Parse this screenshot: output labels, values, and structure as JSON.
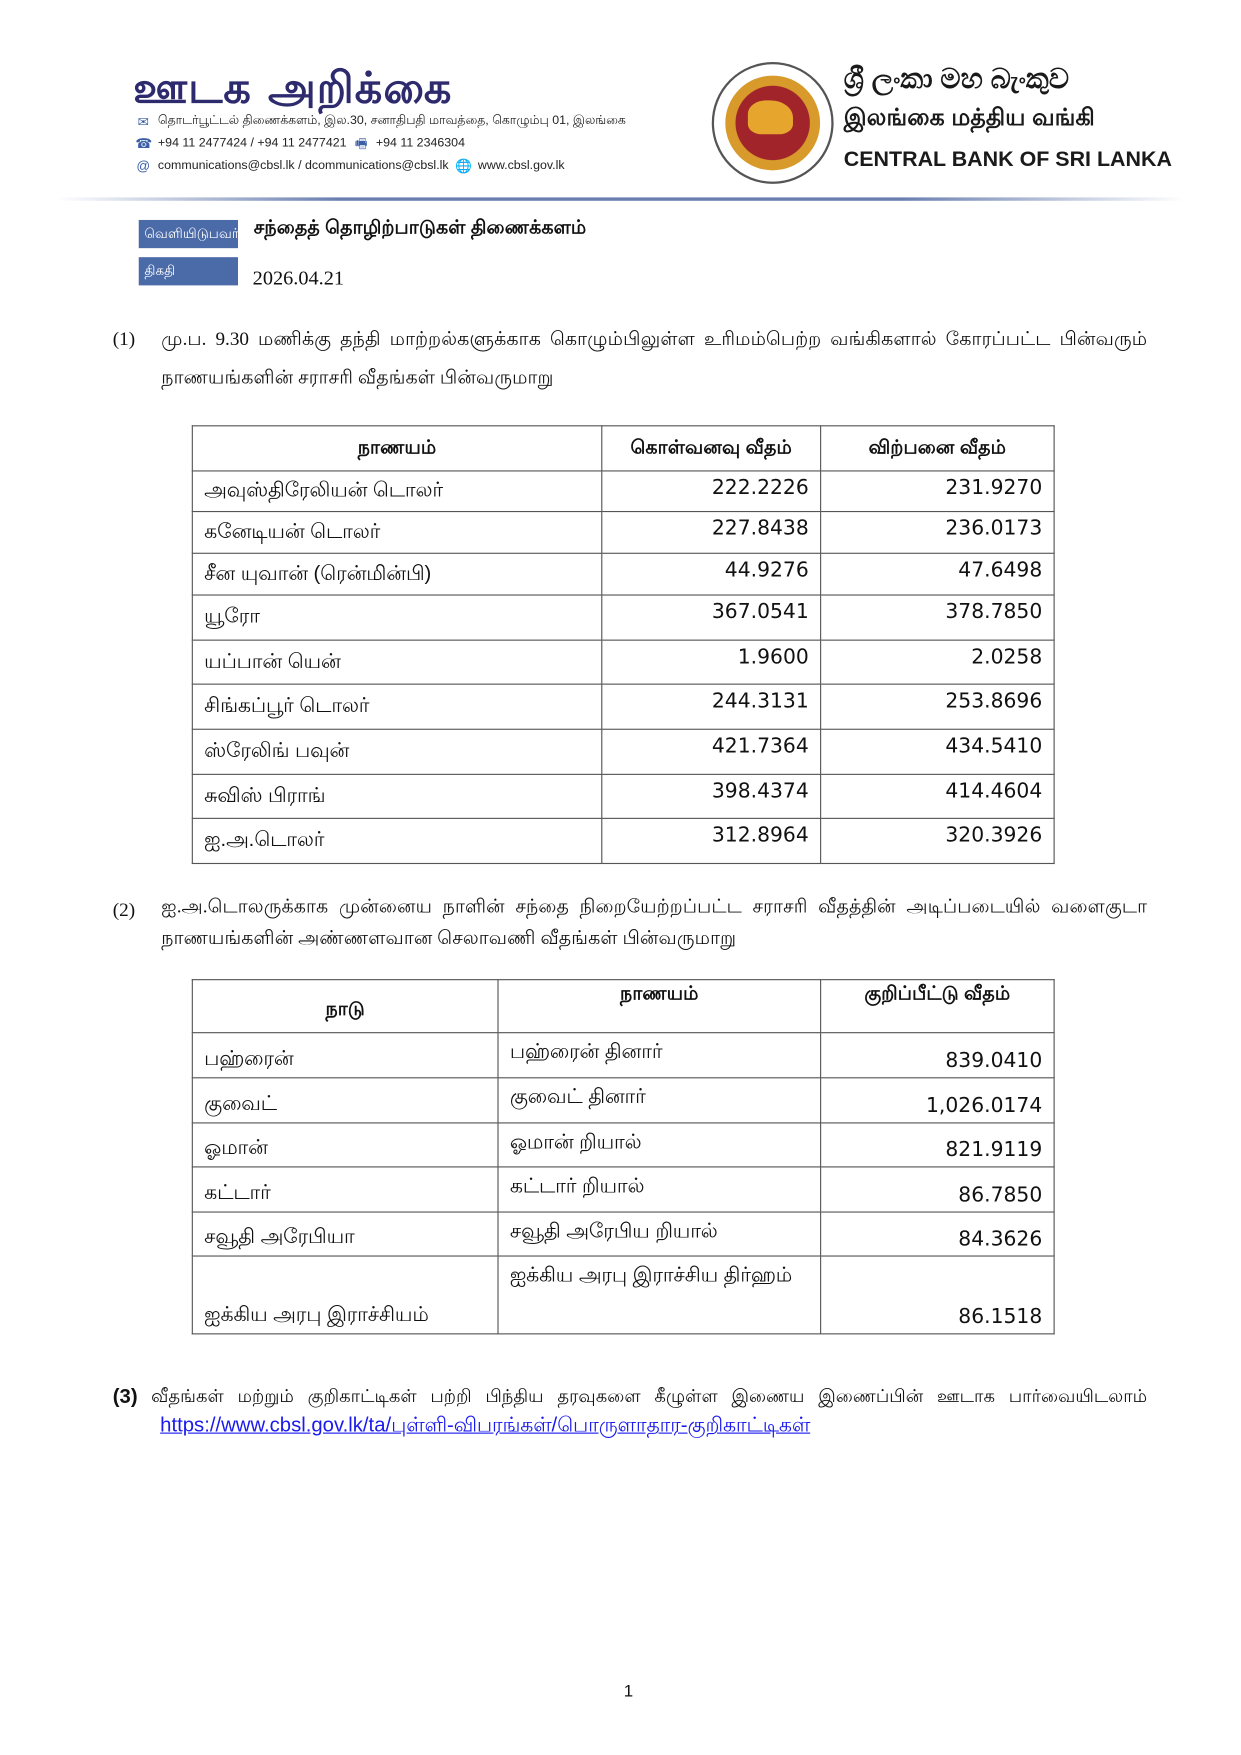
{
  "header": {
    "masthead": "ஊடக அறிக்கை",
    "address": "தொடர்பூட்டல் திணைக்களம், இல.30, சனாதிபதி மாவத்தை, கொழும்பு 01, இலங்கை",
    "phones": "+94 11 2477424 / +94 11 2477421",
    "fax": "+94 11  2346304",
    "emails": "communications@cbsl.lk / dcommunications@cbsl.lk",
    "website": "www.cbsl.gov.lk",
    "bank_name_sinhala": "ශ්‍රී ලංකා මහ බැංකුව",
    "bank_name_tamil": "இலங்கை மத்திய வங்கி",
    "bank_name_english": "CENTRAL BANK OF SRI LANKA",
    "logo_text": "CENTRAL BANK OF SRI LANKA"
  },
  "meta": {
    "issuer_label": "வெளியிடுபவர்",
    "issuer": "சந்தைத் தொழிற்பாடுகள் திணைக்களம்",
    "date_label": "திகதி",
    "date": "2026.04.21"
  },
  "section1": {
    "number": "(1)",
    "text": "மு.ப. 9.30 மணிக்கு தந்தி மாற்றல்களுக்காக கொழும்பிலுள்ள உரிமம்பெற்ற வங்கிகளால் கோரப்பட்ட பின்வரும் நாணயங்களின் சராசரி வீதங்கள் பின்வருமாறு",
    "headers": [
      "நாணயம்",
      "கொள்வனவு வீதம்",
      "விற்பனை வீதம்"
    ],
    "rows": [
      [
        "அவுஸ்திரேலியன் டொலர்",
        "222.2226",
        "231.9270"
      ],
      [
        "கனேடியன் டொலர்",
        "227.8438",
        "236.0173"
      ],
      [
        "சீன யுவான் (ரென்மின்பி)",
        "44.9276",
        "47.6498"
      ],
      [
        "யூரோ",
        "367.0541",
        "378.7850"
      ],
      [
        "யப்பான் யென்",
        "1.9600",
        "2.0258"
      ],
      [
        "சிங்கப்பூர் டொலர்",
        "244.3131",
        "253.8696"
      ],
      [
        "ஸ்ரேலிங் பவுன்",
        "421.7364",
        "434.5410"
      ],
      [
        "சுவிஸ் பிராங்",
        "398.4374",
        "414.4604"
      ],
      [
        "ஐ.அ.டொலர்",
        "312.8964",
        "320.3926"
      ]
    ]
  },
  "section2": {
    "number": "(2)",
    "text": "ஐ.அ.டொலருக்காக முன்னைய நாளின் சந்தை நிறையேற்றப்பட்ட சராசரி வீதத்தின் அடிப்படையில் வளைகுடா நாணயங்களின் அண்ணளவான செலாவணி வீதங்கள் பின்வருமாறு",
    "headers": [
      "நாடு",
      "நாணயம்",
      "குறிப்பீட்டு வீதம்"
    ],
    "rows": [
      [
        "பஹ்ரைன்",
        "பஹ்ரைன் தினார்",
        "839.0410"
      ],
      [
        "குவைட்",
        "குவைட் தினார்",
        "1,026.0174"
      ],
      [
        "ஓமான்",
        "ஓமான் றியால்",
        "821.9119"
      ],
      [
        "கட்டார்",
        "கட்டார் றியால்",
        "86.7850"
      ],
      [
        "சவூதி அரேபியா",
        "சவூதி அரேபிய றியால்",
        "84.3626"
      ],
      [
        "ஐக்கிய அரபு இராச்சியம்",
        "ஐக்கிய அரபு இராச்சிய திர்ஹம்",
        "86.1518"
      ]
    ]
  },
  "section3": {
    "number": "(3)",
    "text": "வீதங்கள் மற்றும் குறிகாட்டிகள் பற்றி பிந்திய தரவுகளை கீழுள்ள இணைய இணைப்பின் ஊடாக பார்வையிடலாம்",
    "link": "https://www.cbsl.gov.lk/ta/புள்ளி-விபரங்கள்/பொருளாதார-குறிகாட்டிகள்"
  },
  "footer": {
    "page_number": "1"
  },
  "colors": {
    "masthead": "#2e2a6e",
    "label_bg": "#4a6aa8",
    "link": "#1a1aee"
  }
}
